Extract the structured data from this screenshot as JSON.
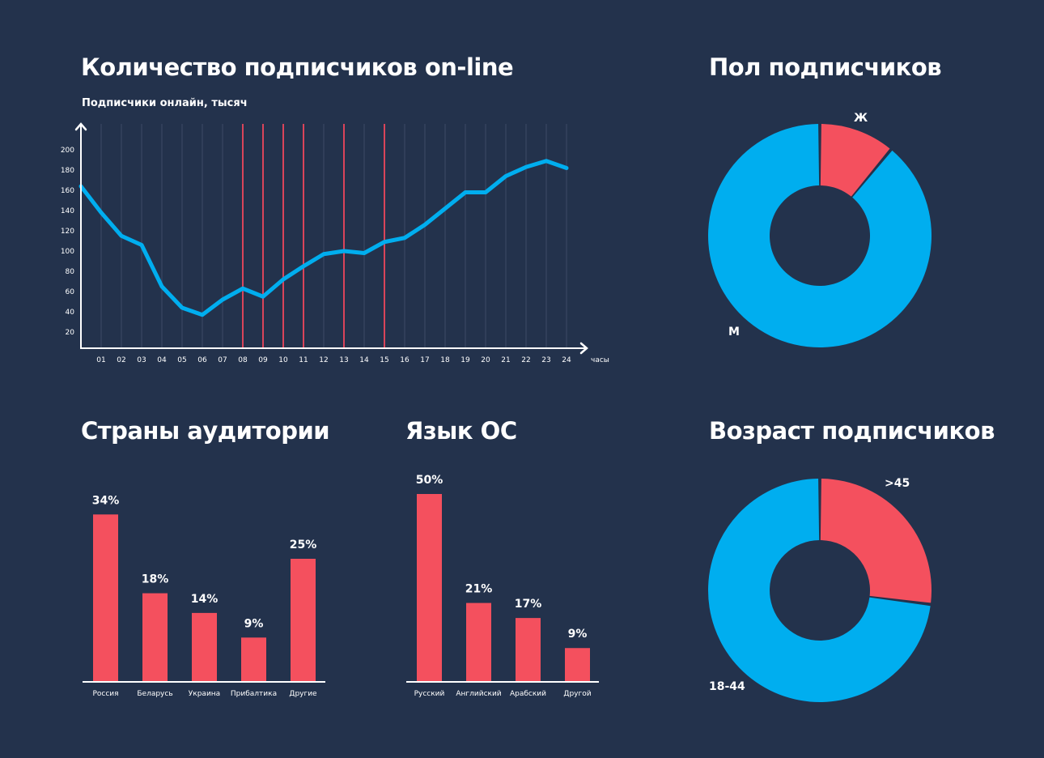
{
  "colors": {
    "background": "#23324C",
    "blue": "#00AEEF",
    "red": "#F4505E",
    "marker_red": "#D9445A",
    "grid": "#3C4B66",
    "axis": "#FFFFFF"
  },
  "online": {
    "title": "Количество подписчиков on-line",
    "subtitle": "Подписчики онлайн, тысяч",
    "x_unit": "часы"
  },
  "gender": {
    "title": "Пол подписчиков"
  },
  "countries": {
    "title": "Страны аудитории"
  },
  "os_lang": {
    "title": "Язык ОС"
  },
  "age": {
    "title": "Возраст подписчиков"
  },
  "chart_data": [
    {
      "type": "line",
      "title": "Количество подписчиков on-line",
      "subtitle": "Подписчики онлайн, тысяч",
      "xlabel": "часы",
      "ylabel": "Подписчики онлайн, тысяч",
      "x": [
        "00",
        "01",
        "02",
        "03",
        "04",
        "05",
        "06",
        "07",
        "08",
        "09",
        "10",
        "11",
        "12",
        "13",
        "14",
        "15",
        "16",
        "17",
        "18",
        "19",
        "20",
        "21",
        "22",
        "23",
        "24"
      ],
      "x_tick_labels": [
        "01",
        "02",
        "03",
        "04",
        "05",
        "06",
        "07",
        "08",
        "09",
        "10",
        "11",
        "12",
        "13",
        "14",
        "15",
        "16",
        "17",
        "18",
        "19",
        "20",
        "21",
        "22",
        "23",
        "24"
      ],
      "y_ticks": [
        20,
        40,
        60,
        80,
        100,
        120,
        140,
        160,
        180,
        200
      ],
      "values": [
        164,
        138,
        115,
        106,
        65,
        44,
        37,
        52,
        63,
        55,
        72,
        85,
        97,
        100,
        98,
        109,
        113,
        126,
        142,
        158,
        158,
        174,
        183,
        189,
        182
      ],
      "highlighted_hours": [
        "08",
        "09",
        "10",
        "11",
        "13",
        "15"
      ],
      "ylim": [
        0,
        220
      ],
      "grid": "vertical",
      "series_color": "#00AEEF"
    },
    {
      "type": "pie",
      "variant": "donut",
      "title": "Пол подписчиков",
      "labels": [
        "Ж",
        "М"
      ],
      "values": [
        11,
        89
      ],
      "colors": [
        "#F4505E",
        "#00AEEF"
      ]
    },
    {
      "type": "bar",
      "title": "Страны аудитории",
      "categories": [
        "Россия",
        "Беларусь",
        "Украина",
        "Прибалтика",
        "Другие"
      ],
      "values": [
        34,
        18,
        14,
        9,
        25
      ],
      "value_labels": [
        "34%",
        "18%",
        "14%",
        "9%",
        "25%"
      ],
      "unit": "%",
      "color": "#F4505E"
    },
    {
      "type": "bar",
      "title": "Язык ОС",
      "categories": [
        "Русский",
        "Английский",
        "Арабский",
        "Другой"
      ],
      "values": [
        50,
        21,
        17,
        9
      ],
      "value_labels": [
        "50%",
        "21%",
        "17%",
        "9%"
      ],
      "unit": "%",
      "color": "#F4505E"
    },
    {
      "type": "pie",
      "variant": "donut",
      "title": "Возраст подписчиков",
      "labels": [
        ">45",
        "18-44"
      ],
      "values": [
        27,
        73
      ],
      "colors": [
        "#F4505E",
        "#00AEEF"
      ]
    }
  ]
}
